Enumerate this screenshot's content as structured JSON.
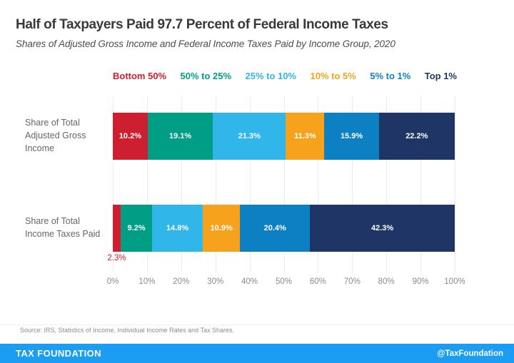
{
  "header": {
    "title": "Half of Taxpayers Paid 97.7 Percent of Federal Income Taxes",
    "subtitle": "Shares of Adjusted Gross Income and Federal Income Taxes Paid by Income Group, 2020"
  },
  "chart_data": {
    "type": "bar",
    "orientation": "horizontal",
    "stacked": true,
    "grid": true,
    "legend_position": "top",
    "xlim": [
      0,
      100
    ],
    "x_ticks": [
      "0%",
      "10%",
      "20%",
      "30%",
      "40%",
      "50%",
      "60%",
      "70%",
      "80%",
      "90%",
      "100%"
    ],
    "categories": [
      "Share of Total Adjusted Gross Income",
      "Share of Total Income Taxes Paid"
    ],
    "category_label_lines": [
      [
        "Share of Total",
        "Adjusted Gross",
        "Income"
      ],
      [
        "Share of Total",
        "Income Taxes Paid"
      ]
    ],
    "series": [
      {
        "name": "Bottom 50%",
        "color": "#cd1f30",
        "values": [
          10.2,
          2.3
        ]
      },
      {
        "name": "50% to 25%",
        "color": "#009e84",
        "values": [
          19.1,
          9.2
        ]
      },
      {
        "name": "25% to 10%",
        "color": "#30b6e9",
        "values": [
          21.3,
          14.8
        ]
      },
      {
        "name": "10% to 5%",
        "color": "#f6a21d",
        "values": [
          11.3,
          10.9
        ]
      },
      {
        "name": "5% to 1%",
        "color": "#0d80c3",
        "values": [
          15.9,
          20.4
        ]
      },
      {
        "name": "Top 1%",
        "color": "#1f3566",
        "values": [
          22.2,
          42.3
        ]
      }
    ],
    "data_label_format": "percent_one_decimal"
  },
  "footer": {
    "source": "Source: IRS, Statistics of Income, Individual Income Rates and Tax Shares.",
    "brand": "TAX FOUNDATION",
    "handle": "@TaxFoundation",
    "bar_color": "#1a9df2"
  }
}
